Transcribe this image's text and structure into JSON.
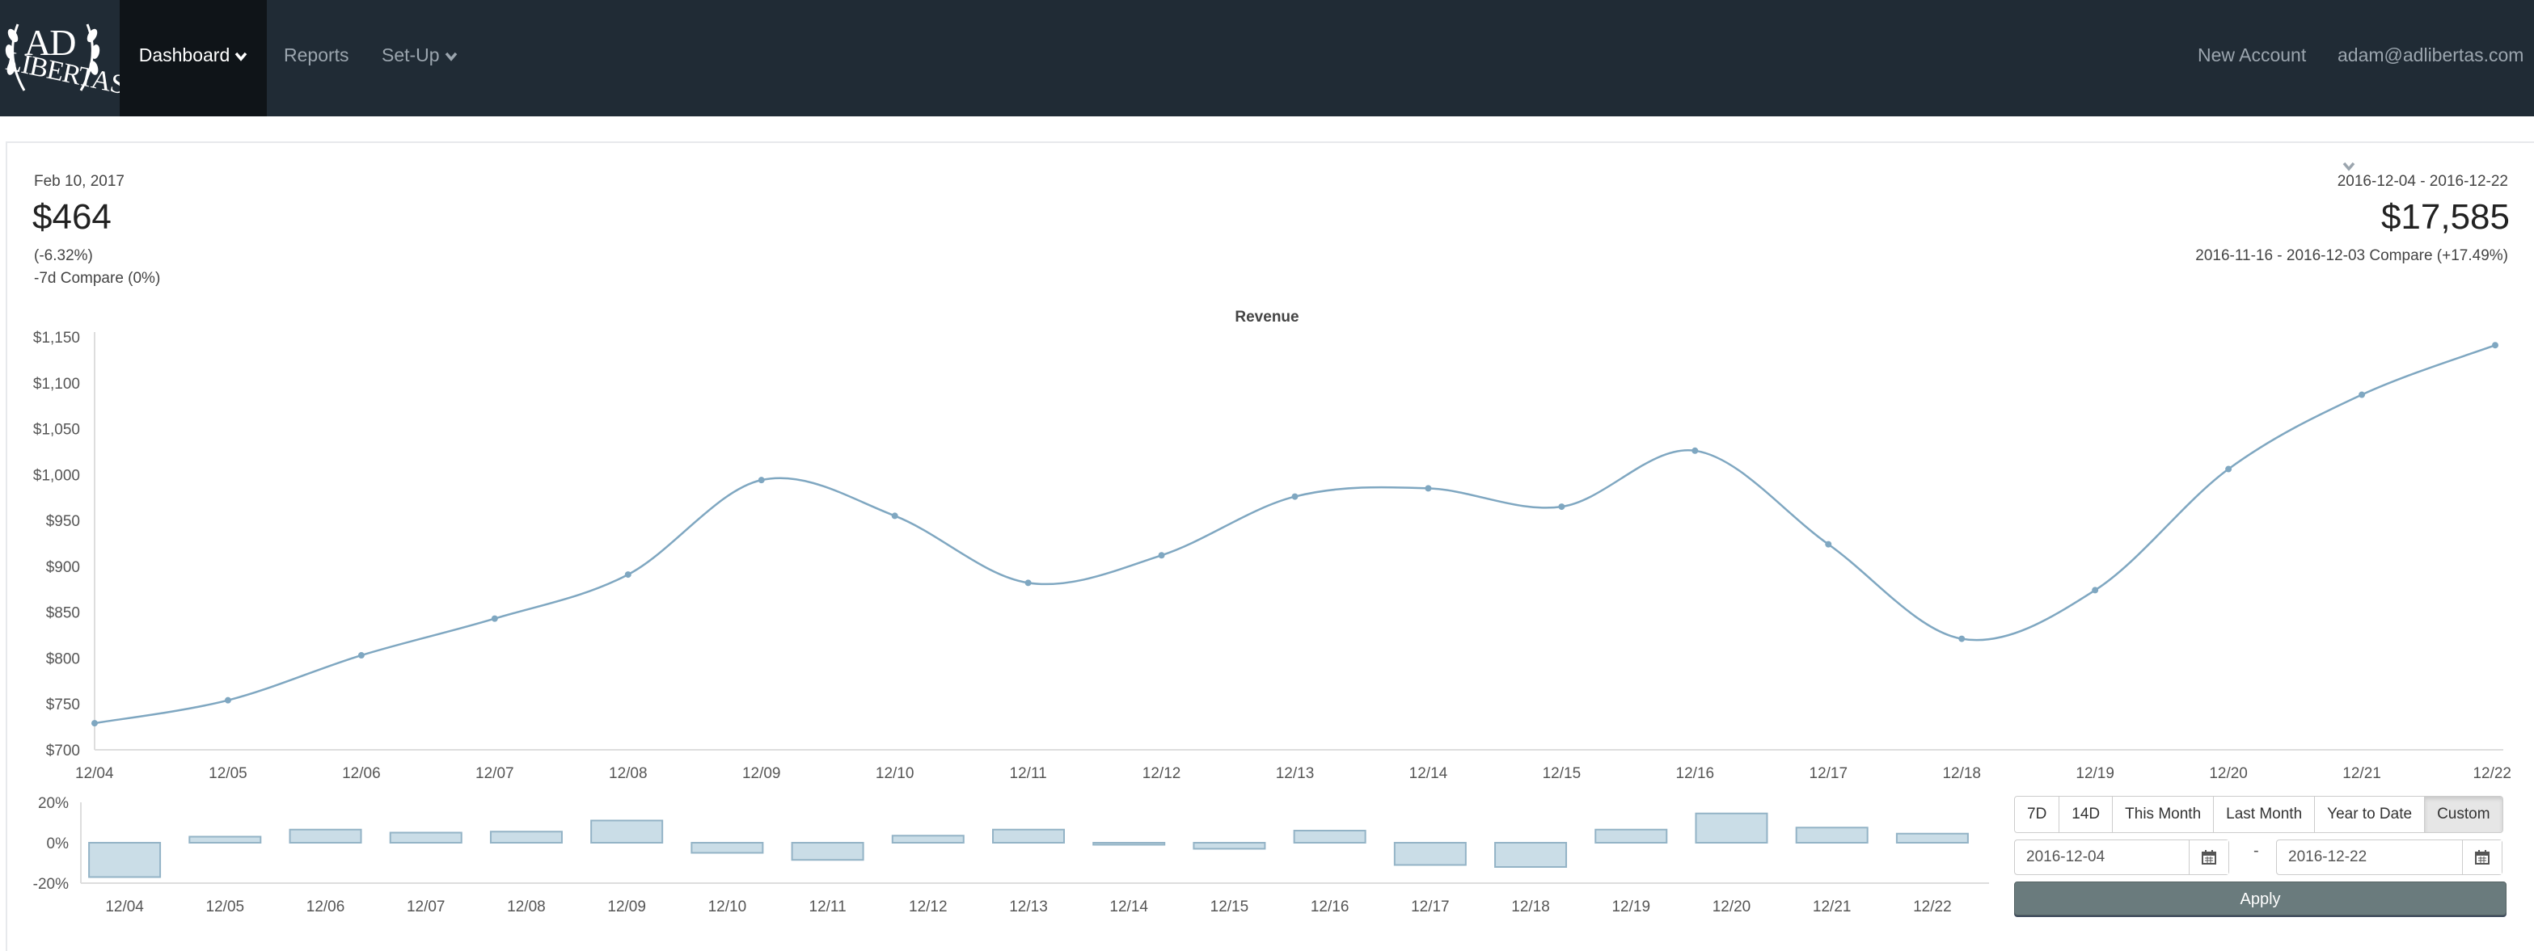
{
  "navbar": {
    "logo_alt": "AD LIBERTAS",
    "logo_text_top": "AD",
    "logo_text_bottom": "LIBERTAS",
    "items": [
      {
        "label": "Dashboard"
      },
      {
        "label": "Reports"
      },
      {
        "label": "Set-Up"
      }
    ],
    "new_account": "New Account",
    "user": "adam@adlibertas.com"
  },
  "stats_left": {
    "date": "Feb 10, 2017",
    "value": "$464",
    "change": "(-6.32%)",
    "compare": "-7d Compare (0%)"
  },
  "stats_right": {
    "range": "2016-12-04 - 2016-12-22",
    "value": "$17,585",
    "compare": "2016-11-16 - 2016-12-03 Compare (+17.49%)"
  },
  "chart_data": [
    {
      "type": "line",
      "title": "Revenue",
      "categories": [
        "12/04",
        "12/05",
        "12/06",
        "12/07",
        "12/08",
        "12/09",
        "12/10",
        "12/11",
        "12/12",
        "12/13",
        "12/14",
        "12/15",
        "12/16",
        "12/17",
        "12/18",
        "12/19",
        "12/20",
        "12/21",
        "12/22"
      ],
      "values": [
        729,
        754,
        803,
        843,
        891,
        994,
        955,
        882,
        912,
        976,
        985,
        965,
        1026,
        924,
        821,
        874,
        1006,
        1087,
        1141
      ],
      "ylim": [
        700,
        1150
      ],
      "yticks": [
        "$1,150",
        "$1,100",
        "$1,050",
        "$1,000",
        "$950",
        "$900",
        "$850",
        "$800",
        "$750",
        "$700"
      ],
      "grid": false,
      "color": "#7fa7c1"
    },
    {
      "type": "bar",
      "categories": [
        "12/04",
        "12/05",
        "12/06",
        "12/07",
        "12/08",
        "12/09",
        "12/10",
        "12/11",
        "12/12",
        "12/13",
        "12/14",
        "12/15",
        "12/16",
        "12/17",
        "12/18",
        "12/19",
        "12/20",
        "12/21",
        "12/22"
      ],
      "values": [
        -17,
        3,
        6.5,
        5,
        5.5,
        11,
        -5,
        -8.5,
        3.5,
        6.5,
        -1,
        -3,
        6,
        -11,
        -12,
        6.5,
        14.5,
        7.5,
        4.5
      ],
      "ylim": [
        -20,
        20
      ],
      "yticks": [
        "20%",
        "0%",
        "-20%"
      ],
      "fill": "#cadde7",
      "stroke": "#93b3c6"
    }
  ],
  "controls": {
    "ranges": [
      {
        "label": "7D"
      },
      {
        "label": "14D"
      },
      {
        "label": "This Month"
      },
      {
        "label": "Last Month"
      },
      {
        "label": "Year to Date"
      },
      {
        "label": "Custom",
        "active": true
      }
    ],
    "date_from": "2016-12-04",
    "date_to": "2016-12-22",
    "separator": "-",
    "apply": "Apply"
  }
}
